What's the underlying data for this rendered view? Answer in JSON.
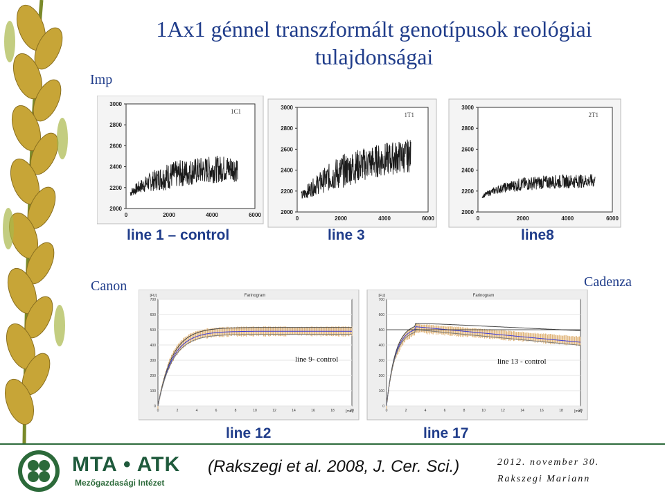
{
  "slide": {
    "title": "1Ax1 génnel transzformált genotípusok reológiai tulajdonságai",
    "imp_label": "Imp",
    "canon_label": "Canon",
    "cadenza_label": "Cadenza"
  },
  "top_plots": [
    {
      "tag": "1C1",
      "yticks": [
        "3000",
        "2800",
        "2600",
        "2400",
        "2200",
        "2000"
      ],
      "xticks": [
        "0",
        "2000",
        "4000",
        "6000"
      ],
      "caption": "line 1 – control"
    },
    {
      "tag": "1T1",
      "yticks": [
        "3000",
        "2800",
        "2600",
        "2400",
        "2200",
        "2000"
      ],
      "xticks": [
        "0",
        "2000",
        "4000",
        "6000"
      ],
      "caption": "line 3"
    },
    {
      "tag": "2T1",
      "yticks": [
        "3000",
        "2800",
        "2600",
        "2400",
        "2200",
        "2000"
      ],
      "xticks": [
        "0",
        "2000",
        "4000",
        "6000"
      ],
      "caption": "line8"
    }
  ],
  "farinograms": [
    {
      "title": "Farinogram",
      "unit_y": "[FU]",
      "unit_x": "[min]",
      "yticks": [
        "700",
        "600",
        "500",
        "400",
        "300",
        "200",
        "100",
        "0"
      ],
      "xticks": [
        "0",
        "2",
        "4",
        "6",
        "8",
        "10",
        "12",
        "14",
        "16",
        "18",
        "20"
      ],
      "annotation": "line 9- control",
      "caption": "line 12"
    },
    {
      "title": "Farinogram",
      "unit_y": "[FU]",
      "unit_x": "[min]",
      "yticks": [
        "700",
        "600",
        "500",
        "400",
        "300",
        "200",
        "100",
        "0"
      ],
      "xticks": [
        "0",
        "2",
        "4",
        "6",
        "8",
        "10",
        "12",
        "14",
        "16",
        "18",
        "20"
      ],
      "annotation": "line 13 - control",
      "caption": "line 17"
    }
  ],
  "footer": {
    "mta": "MTA • ATK",
    "mezo": "Mezőgazdasági Intézet",
    "citation": "(Rakszegi et al. 2008, J. Cer. Sci.)",
    "date": "2012. november 30.",
    "author": "Rakszegi Mariann"
  },
  "colors": {
    "title": "#1f3c8a",
    "brand_green": "#2c6a3a",
    "wheat_gold": "#c9a93b"
  }
}
